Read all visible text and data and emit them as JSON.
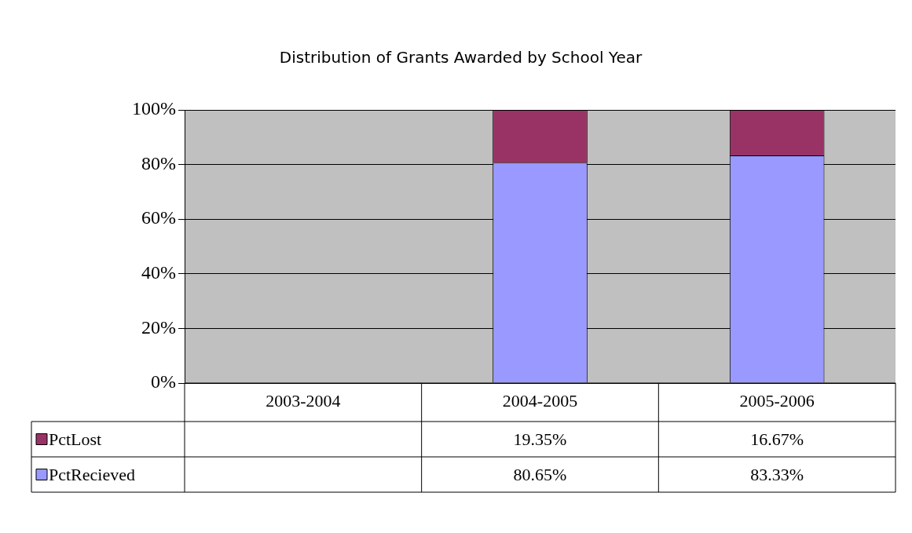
{
  "chart_data": {
    "type": "bar",
    "title": "Distribution of Grants Awarded by School Year",
    "categories": [
      "2003-2004",
      "2004-2005",
      "2005-2006"
    ],
    "stacked": true,
    "series": [
      {
        "name": "PctRecieved",
        "color": "#9999ff",
        "values": [
          null,
          80.65,
          83.33
        ],
        "value_labels": [
          null,
          "80.65%",
          "83.33%"
        ]
      },
      {
        "name": "PctLost",
        "color": "#993366",
        "values": [
          null,
          19.35,
          16.67
        ],
        "value_labels": [
          null,
          "19.35%",
          "16.67%"
        ]
      }
    ],
    "ylim": [
      0,
      100
    ],
    "yticks": [
      {
        "value": 0,
        "label": "0%"
      },
      {
        "value": 20,
        "label": "20%"
      },
      {
        "value": 40,
        "label": "40%"
      },
      {
        "value": 60,
        "label": "60%"
      },
      {
        "value": 80,
        "label": "80%"
      },
      {
        "value": 100,
        "label": "100%"
      }
    ],
    "grid": "y",
    "legend": "bottom left"
  }
}
